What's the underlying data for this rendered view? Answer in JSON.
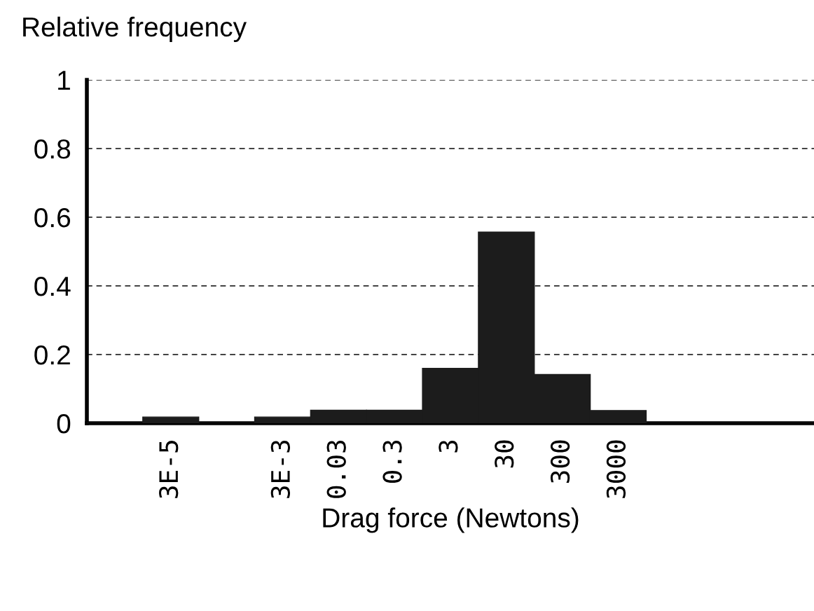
{
  "chart_data": {
    "type": "bar",
    "ylabel": "Relative frequency",
    "xlabel": "Drag force (Newtons)",
    "categories": [
      null,
      "3E-5",
      null,
      "3E-3",
      "0.03",
      "0.3",
      "3",
      "30",
      "300",
      "3000",
      null,
      null,
      null
    ],
    "values": [
      0,
      0.018,
      0,
      0.018,
      0.038,
      0.038,
      0.16,
      0.557,
      0.142,
      0.037,
      0,
      0,
      0
    ],
    "color": "#1c1c1c",
    "ylim": [
      0,
      1
    ],
    "yticks": [
      0,
      0.2,
      0.4,
      0.6,
      0.8,
      1
    ],
    "grid": "y",
    "line_style": "dashed"
  }
}
